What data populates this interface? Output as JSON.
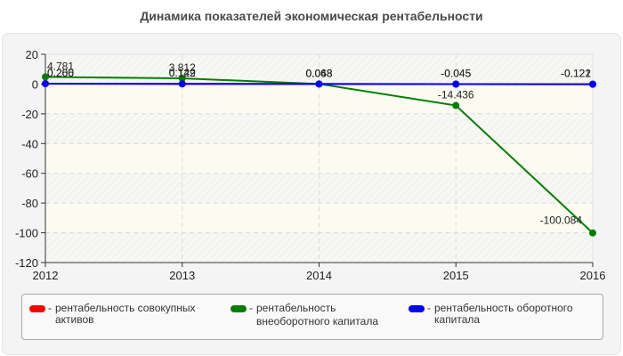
{
  "chart_data": {
    "type": "line",
    "title": "Динамика показателей экономическая рентабельности",
    "xlabel": "",
    "ylabel": "",
    "x": [
      "2012",
      "2013",
      "2014",
      "2015",
      "2016"
    ],
    "ylim": [
      -120,
      20
    ],
    "yticks": [
      20,
      0,
      -20,
      -40,
      -60,
      -80,
      -100,
      -120
    ],
    "grid": true,
    "legend_position": "bottom",
    "series": [
      {
        "name": "рентабельность совокупных активов",
        "color": "#ff0000",
        "values": [
          0.2,
          0.129,
          0.063,
          -0.045,
          -0.121
        ],
        "labels": [
          "0.200",
          "0.129",
          "0.063",
          "-0.045",
          "-0.121"
        ]
      },
      {
        "name": "рентабельность внеоборотного капитала",
        "color": "#008000",
        "values": [
          4.781,
          3.812,
          0.068,
          -14.436,
          -100.084
        ],
        "labels": [
          "4.781",
          "3.812",
          "0.068",
          "-14.436",
          "-100.084"
        ]
      },
      {
        "name": "рентабельность оборотного капитала",
        "color": "#0000ff",
        "values": [
          0.266,
          0.142,
          0.048,
          -0.045,
          -0.122
        ],
        "labels": [
          "0.266",
          "0.142",
          "0.048",
          "-0.045",
          "-0.122"
        ]
      }
    ]
  },
  "legend": {
    "items": [
      {
        "line1": "рентабельность совокупных",
        "line2": "активов",
        "color": "#ff0000"
      },
      {
        "line1": "рентабельность",
        "line2": "внеоборотного капитала",
        "color": "#008000"
      },
      {
        "line1": "рентабельность оборотного",
        "line2": "капитала",
        "color": "#0000ff"
      }
    ],
    "separator": "-"
  }
}
